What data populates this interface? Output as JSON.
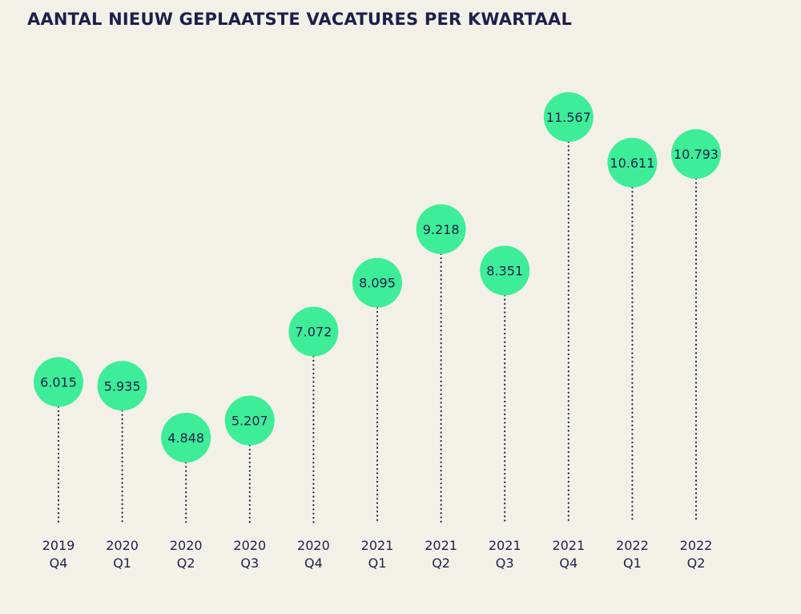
{
  "title": "AANTAL NIEUW GEPLAATSTE VACATURES PER KWARTAAL",
  "colors": {
    "background": "#f3f1e7",
    "bubble": "#3ded97",
    "text": "#1e1f4d",
    "stem": "#1e1f4d"
  },
  "chart_data": {
    "type": "scatter",
    "style": "lollipop",
    "title": "AANTAL NIEUW GEPLAATSTE VACATURES PER KWARTAAL",
    "grid": false,
    "legend": "none",
    "categories": [
      [
        "2019",
        "Q4"
      ],
      [
        "2020",
        "Q1"
      ],
      [
        "2020",
        "Q2"
      ],
      [
        "2020",
        "Q3"
      ],
      [
        "2020",
        "Q4"
      ],
      [
        "2021",
        "Q1"
      ],
      [
        "2021",
        "Q2"
      ],
      [
        "2021",
        "Q3"
      ],
      [
        "2021",
        "Q4"
      ],
      [
        "2022",
        "Q1"
      ],
      [
        "2022",
        "Q2"
      ]
    ],
    "values": [
      6015,
      5935,
      4848,
      5207,
      7072,
      8095,
      9218,
      8351,
      11567,
      10611,
      10793
    ],
    "value_labels": [
      "6.015",
      "5.935",
      "4.848",
      "5.207",
      "7.072",
      "8.095",
      "9.218",
      "8.351",
      "11.567",
      "10.611",
      "10.793"
    ]
  }
}
